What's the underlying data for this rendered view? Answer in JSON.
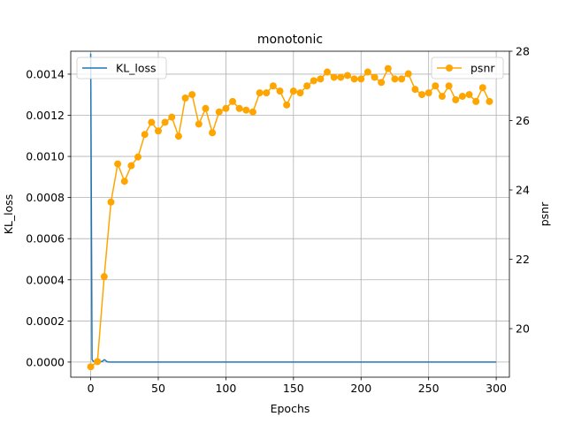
{
  "chart_data": {
    "type": "line",
    "title": "monotonic",
    "xlabel": "Epochs",
    "ylabel_left": "KL_loss",
    "ylabel_right": "psnr",
    "xlim": [
      -14.75,
      309.75
    ],
    "ylim_left": [
      -7.35e-05,
      0.0015115
    ],
    "ylim_right": [
      18.6,
      28.0
    ],
    "x_ticks": [
      0,
      50,
      100,
      150,
      200,
      250,
      300
    ],
    "x_tick_labels": [
      "0",
      "50",
      "100",
      "150",
      "200",
      "250",
      "300"
    ],
    "y_left_ticks": [
      0,
      0.0002,
      0.0004,
      0.0006,
      0.0008,
      0.001,
      0.0012,
      0.0014
    ],
    "y_left_tick_labels": [
      "0.0000",
      "0.0002",
      "0.0004",
      "0.0006",
      "0.0008",
      "0.0010",
      "0.0012",
      "0.0014"
    ],
    "y_right_ticks": [
      20,
      22,
      24,
      26,
      28
    ],
    "y_right_tick_labels": [
      "20",
      "22",
      "24",
      "26",
      "28"
    ],
    "grid": true,
    "legend_left": {
      "placement": "upper-left",
      "label": "KL_loss"
    },
    "legend_right": {
      "placement": "upper-right",
      "label": "psnr"
    },
    "series": [
      {
        "name": "KL_loss",
        "axis": "left",
        "color": "#1f77b4",
        "marker": "none",
        "x": [
          0,
          1,
          2,
          3,
          4,
          5,
          6,
          7,
          8,
          9,
          10,
          11,
          12,
          13,
          14,
          15,
          20,
          50,
          100,
          150,
          200,
          250,
          300
        ],
        "y": [
          0.0015,
          1.2e-05,
          4e-06,
          2e-06,
          1e-06,
          8e-07,
          6e-07,
          5e-07,
          3e-06,
          5e-06,
          1.2e-05,
          8e-06,
          2e-06,
          5e-07,
          3e-07,
          2e-07,
          1e-07,
          1e-07,
          1e-07,
          1e-07,
          1e-07,
          1e-07,
          1e-07
        ]
      },
      {
        "name": "psnr",
        "axis": "right",
        "color": "#ffa500",
        "marker": "circle",
        "x": [
          0,
          5,
          10,
          15,
          20,
          25,
          30,
          35,
          40,
          45,
          50,
          55,
          60,
          65,
          70,
          75,
          80,
          85,
          90,
          95,
          100,
          105,
          110,
          115,
          120,
          125,
          130,
          135,
          140,
          145,
          150,
          155,
          160,
          165,
          170,
          175,
          180,
          185,
          190,
          195,
          200,
          205,
          210,
          215,
          220,
          225,
          230,
          235,
          240,
          245,
          250,
          255,
          260,
          265,
          270,
          275,
          280,
          285,
          290,
          295
        ],
        "y": [
          18.9,
          19.05,
          21.5,
          23.65,
          24.75,
          24.25,
          24.7,
          24.95,
          25.6,
          25.95,
          25.7,
          25.95,
          26.1,
          25.55,
          26.65,
          26.75,
          25.9,
          26.35,
          25.65,
          26.25,
          26.35,
          26.55,
          26.35,
          26.3,
          26.25,
          26.8,
          26.8,
          27.0,
          26.85,
          26.45,
          26.85,
          26.8,
          27.0,
          27.15,
          27.2,
          27.4,
          27.25,
          27.25,
          27.3,
          27.2,
          27.2,
          27.4,
          27.25,
          27.1,
          27.5,
          27.2,
          27.2,
          27.35,
          26.9,
          26.75,
          26.8,
          27.0,
          26.7,
          27.0,
          26.6,
          26.7,
          26.75,
          26.55,
          26.95,
          26.55
        ]
      }
    ]
  }
}
